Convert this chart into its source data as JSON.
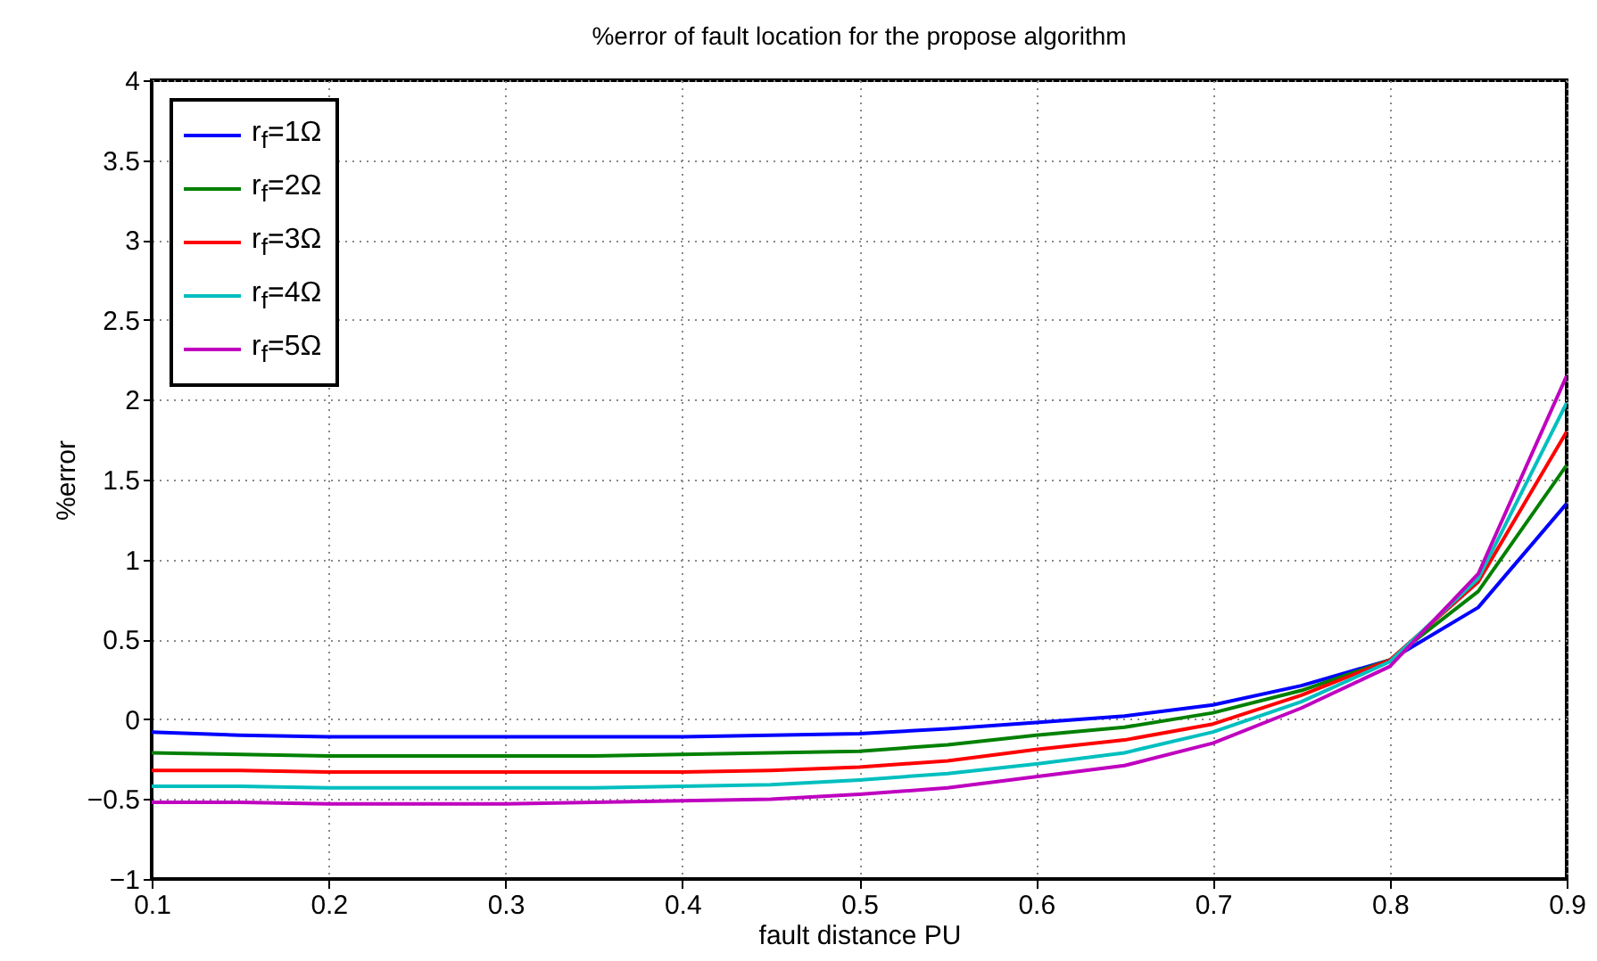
{
  "chart_data": {
    "type": "line",
    "title": "%error of fault location for the propose algorithm",
    "xlabel": "fault distance PU",
    "ylabel": "%error",
    "x": [
      0.1,
      0.15,
      0.2,
      0.25,
      0.3,
      0.35,
      0.4,
      0.45,
      0.5,
      0.55,
      0.6,
      0.65,
      0.7,
      0.75,
      0.8,
      0.85,
      0.9
    ],
    "series": [
      {
        "name": "r$_{f}$=1Ω",
        "color": "#0000ff",
        "values": [
          -0.08,
          -0.1,
          -0.11,
          -0.11,
          -0.11,
          -0.11,
          -0.11,
          -0.1,
          -0.09,
          -0.06,
          -0.02,
          0.02,
          0.09,
          0.21,
          0.37,
          0.7,
          1.35
        ]
      },
      {
        "name": "r$_{f}$=2Ω",
        "color": "#008000",
        "values": [
          -0.21,
          -0.22,
          -0.23,
          -0.23,
          -0.23,
          -0.23,
          -0.22,
          -0.21,
          -0.2,
          -0.16,
          -0.1,
          -0.05,
          0.04,
          0.18,
          0.37,
          0.8,
          1.59
        ]
      },
      {
        "name": "r$_{f}$=3Ω",
        "color": "#ff0000",
        "values": [
          -0.32,
          -0.32,
          -0.33,
          -0.33,
          -0.33,
          -0.33,
          -0.33,
          -0.32,
          -0.3,
          -0.26,
          -0.19,
          -0.13,
          -0.03,
          0.15,
          0.37,
          0.86,
          1.8
        ]
      },
      {
        "name": "r$_{f}$=4Ω",
        "color": "#00bfbf",
        "values": [
          -0.42,
          -0.42,
          -0.43,
          -0.43,
          -0.43,
          -0.43,
          -0.42,
          -0.41,
          -0.38,
          -0.34,
          -0.28,
          -0.21,
          -0.08,
          0.11,
          0.36,
          0.88,
          1.98
        ]
      },
      {
        "name": "r$_{f}$=5Ω",
        "color": "#bf00bf",
        "values": [
          -0.52,
          -0.52,
          -0.53,
          -0.53,
          -0.53,
          -0.52,
          -0.51,
          -0.5,
          -0.47,
          -0.43,
          -0.36,
          -0.29,
          -0.15,
          0.07,
          0.33,
          0.91,
          2.15
        ]
      }
    ],
    "xlim": [
      0.1,
      0.9
    ],
    "xticks": [
      0.1,
      0.2,
      0.3,
      0.4,
      0.5,
      0.6,
      0.7,
      0.8,
      0.9
    ],
    "ylim": [
      -1,
      4
    ],
    "yticks": [
      -1,
      -0.5,
      0,
      0.5,
      1,
      1.5,
      2,
      2.5,
      3,
      3.5,
      4
    ],
    "grid": true,
    "legend": "top left",
    "marker": "none",
    "line_style": "solid"
  }
}
